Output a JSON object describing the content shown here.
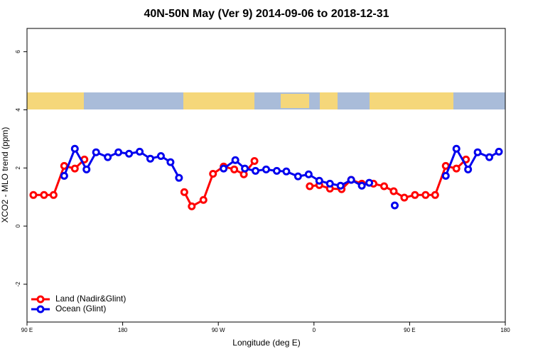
{
  "chart_data": {
    "type": "line",
    "title": "40N-50N May (Ver 9)   2014-09-06 to 2018-12-31",
    "xlabel": "Longitude (deg E)",
    "ylabel": "XCO2 - MLO trend (ppm)",
    "xlim": [
      90,
      540
    ],
    "ylim": [
      -3.3,
      6.8
    ],
    "xticks": [
      {
        "value": 90,
        "label": "90 E"
      },
      {
        "value": 180,
        "label": "180"
      },
      {
        "value": 270,
        "label": "90 W"
      },
      {
        "value": 360,
        "label": "0"
      },
      {
        "value": 450,
        "label": "90 E"
      },
      {
        "value": 540,
        "label": "180"
      }
    ],
    "yticks": [
      -2,
      0,
      2,
      4,
      6
    ],
    "legend": "bottom-left",
    "series": [
      {
        "name": "Land (Nadir&Glint)",
        "color": "#ff0000",
        "x": [
          96,
          106,
          115,
          125,
          135,
          144,
          null,
          238,
          245,
          256,
          265,
          275,
          285,
          294,
          304,
          null,
          356,
          365,
          375,
          386,
          395,
          405,
          416,
          426,
          435,
          445,
          455,
          465,
          474,
          484,
          494,
          503
        ],
        "values": [
          1.07,
          1.07,
          1.07,
          2.07,
          1.98,
          2.29,
          null,
          1.17,
          0.68,
          0.9,
          1.8,
          2.05,
          1.95,
          1.78,
          2.24,
          null,
          1.37,
          1.41,
          1.29,
          1.27,
          1.59,
          1.46,
          1.46,
          1.37,
          1.2,
          0.98,
          1.07,
          1.07,
          1.07,
          2.07,
          1.98,
          2.29
        ]
      },
      {
        "name": "Ocean (Glint)",
        "color": "#0000ee",
        "x": [
          125,
          135,
          146,
          155,
          166,
          176,
          186,
          196,
          206,
          216,
          225,
          233,
          null,
          275,
          286,
          295,
          305,
          315,
          325,
          334,
          345,
          355,
          365,
          375,
          385,
          395,
          405,
          412,
          null,
          436,
          null,
          484,
          494,
          505,
          514,
          525,
          534
        ],
        "values": [
          1.73,
          2.66,
          1.95,
          2.54,
          2.37,
          2.54,
          2.49,
          2.56,
          2.32,
          2.41,
          2.2,
          1.66,
          null,
          1.98,
          2.27,
          1.98,
          1.9,
          1.95,
          1.9,
          1.88,
          1.71,
          1.78,
          1.56,
          1.46,
          1.39,
          1.59,
          1.39,
          1.49,
          null,
          0.71,
          null,
          1.73,
          2.66,
          1.95,
          2.54,
          2.37,
          2.56
        ]
      }
    ]
  }
}
